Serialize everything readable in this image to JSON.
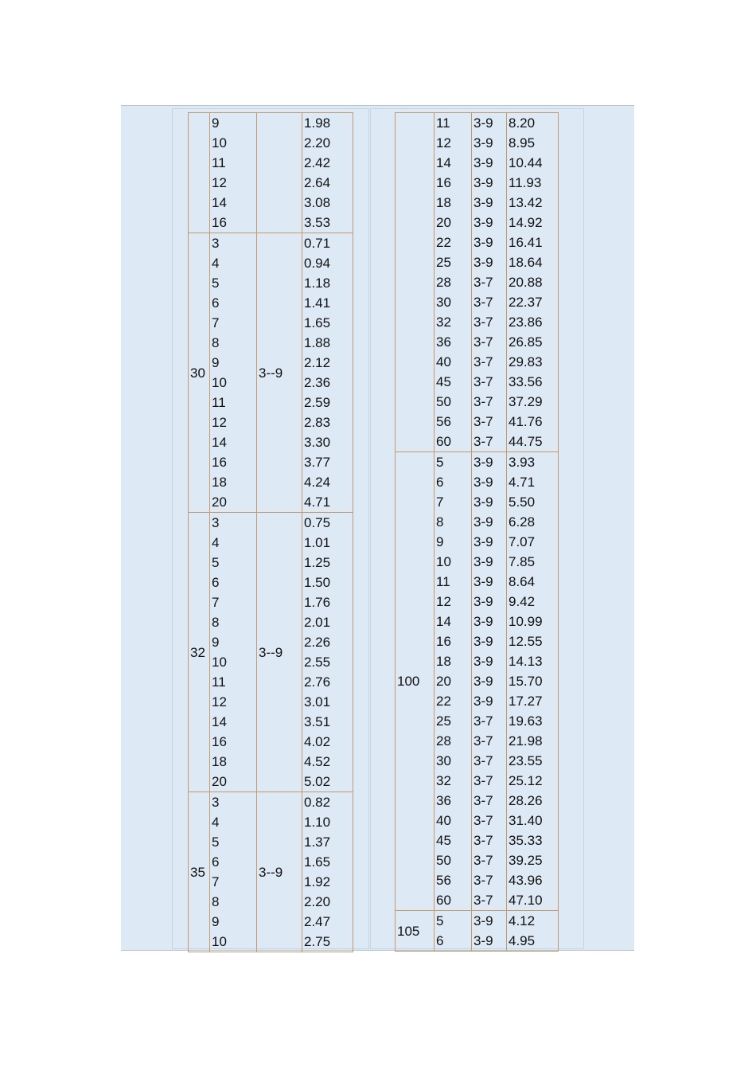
{
  "left_table": {
    "groups": [
      {
        "thickness": [
          "9",
          "10",
          "11",
          "12",
          "14",
          "16"
        ],
        "weight": [
          "1.98",
          "2.20",
          "2.42",
          "2.64",
          "3.08",
          "3.53"
        ]
      },
      {
        "size": "30",
        "range": "3--9",
        "thickness": [
          "3",
          "4",
          "5",
          "6",
          "7",
          "8",
          "9",
          "10",
          "11",
          "12",
          "14",
          "16",
          "18",
          "20"
        ],
        "weight": [
          "0.71",
          "0.94",
          "1.18",
          "1.41",
          "1.65",
          "1.88",
          "2.12",
          "2.36",
          "2.59",
          "2.83",
          "3.30",
          "3.77",
          "4.24",
          "4.71"
        ]
      },
      {
        "size": "32",
        "range": "3--9",
        "thickness": [
          "3",
          "4",
          "5",
          "6",
          "7",
          "8",
          "9",
          "10",
          "11",
          "12",
          "14",
          "16",
          "18",
          "20"
        ],
        "weight": [
          "0.75",
          "1.01",
          "1.25",
          "1.50",
          "1.76",
          "2.01",
          "2.26",
          "2.55",
          "2.76",
          "3.01",
          "3.51",
          "4.02",
          "4.52",
          "5.02"
        ]
      },
      {
        "size": "35",
        "range": "3--9",
        "thickness": [
          "3",
          "4",
          "5",
          "6",
          "7",
          "8",
          "9",
          "10"
        ],
        "weight": [
          "0.82",
          "1.10",
          "1.37",
          "1.65",
          "1.92",
          "2.20",
          "2.47",
          "2.75"
        ]
      }
    ]
  },
  "right_table": {
    "groups": [
      {
        "thickness": [
          "11",
          "12",
          "14",
          "16",
          "18",
          "20",
          "22",
          "25",
          "28",
          "30",
          "32",
          "36",
          "40",
          "45",
          "50",
          "56",
          "60"
        ],
        "range": [
          "3-9",
          "3-9",
          "3-9",
          "3-9",
          "3-9",
          "3-9",
          "3-9",
          "3-9",
          "3-7",
          "3-7",
          "3-7",
          "3-7",
          "3-7",
          "3-7",
          "3-7",
          "3-7",
          "3-7"
        ],
        "weight": [
          "8.20",
          "8.95",
          "10.44",
          "11.93",
          "13.42",
          "14.92",
          "16.41",
          "18.64",
          "20.88",
          "22.37",
          "23.86",
          "26.85",
          "29.83",
          "33.56",
          "37.29",
          "41.76",
          "44.75"
        ]
      },
      {
        "size": "100",
        "thickness": [
          "5",
          "6",
          "7",
          "8",
          "9",
          "10",
          "11",
          "12",
          "14",
          "16",
          "18",
          "20",
          "22",
          "25",
          "28",
          "30",
          "32",
          "36",
          "40",
          "45",
          "50",
          "56",
          "60"
        ],
        "range": [
          "3-9",
          "3-9",
          "3-9",
          "3-9",
          "3-9",
          "3-9",
          "3-9",
          "3-9",
          "3-9",
          "3-9",
          "3-9",
          "3-9",
          "3-9",
          "3-7",
          "3-7",
          "3-7",
          "3-7",
          "3-7",
          "3-7",
          "3-7",
          "3-7",
          "3-7",
          "3-7"
        ],
        "weight": [
          "3.93",
          "4.71",
          "5.50",
          "6.28",
          "7.07",
          "7.85",
          "8.64",
          "9.42",
          "10.99",
          "12.55",
          "14.13",
          "15.70",
          "17.27",
          "19.63",
          "21.98",
          "23.55",
          "25.12",
          "28.26",
          "31.40",
          "35.33",
          "39.25",
          "43.96",
          "47.10"
        ]
      },
      {
        "size": "105",
        "thickness": [
          "5",
          "6"
        ],
        "range": [
          "3-9",
          "3-9"
        ],
        "weight": [
          "4.12",
          "4.95"
        ]
      }
    ]
  }
}
